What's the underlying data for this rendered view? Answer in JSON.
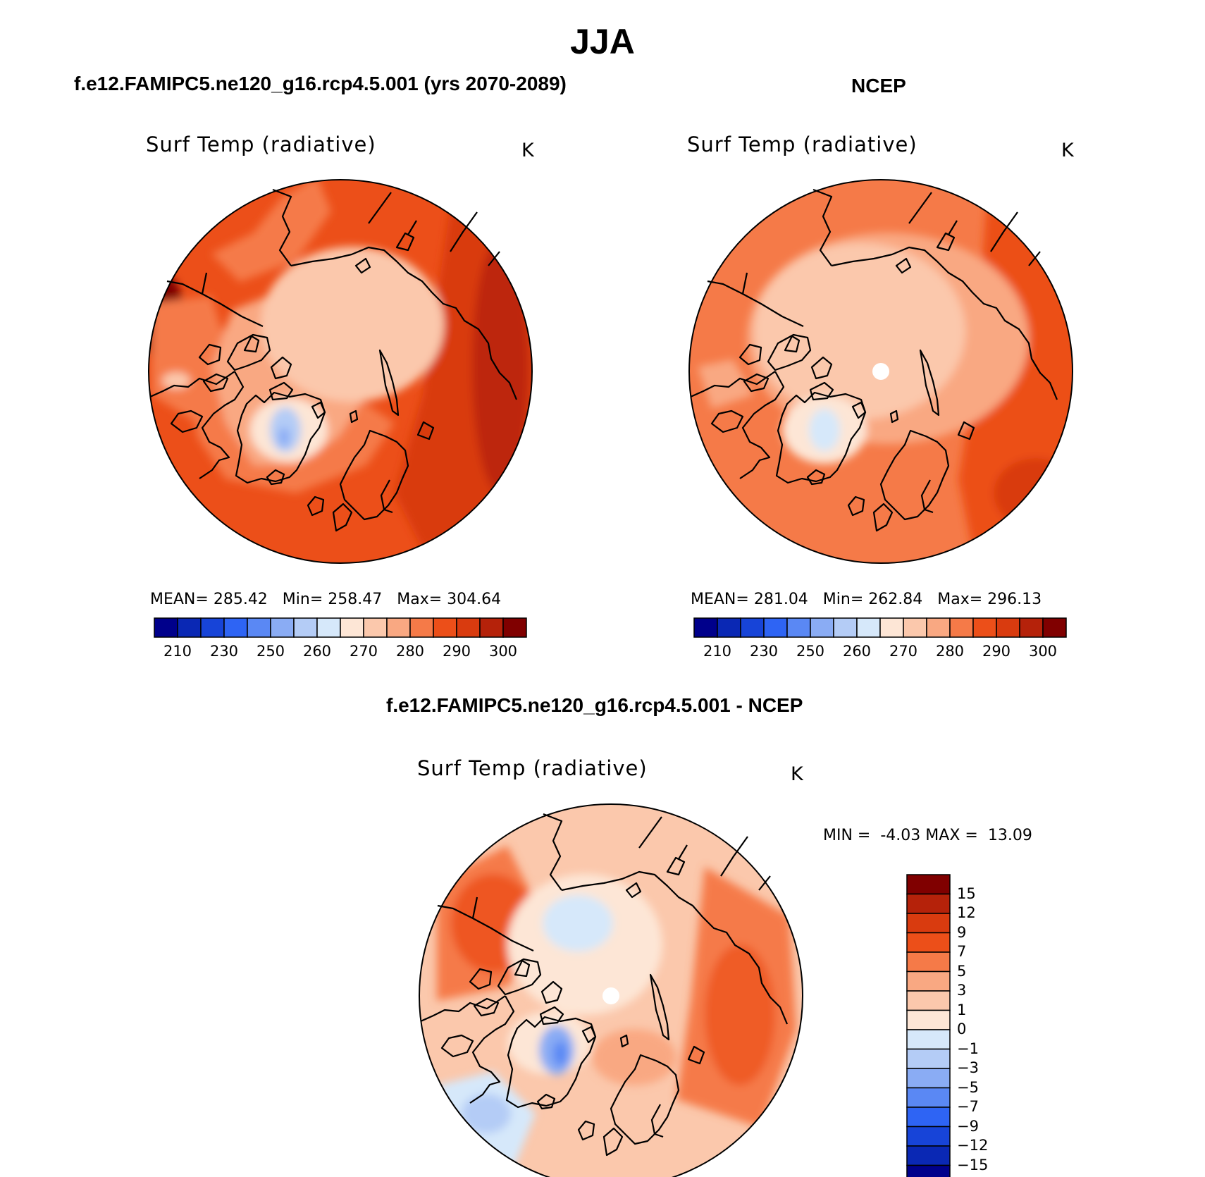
{
  "title": "JJA",
  "panels": [
    {
      "id": "model",
      "header": "f.e12.FAMIPC5.ne120_g16.rcp4.5.001 (yrs 2070-2089)",
      "variable": "Surf Temp (radiative)",
      "units": "K",
      "stats": {
        "mean_label": "MEAN=",
        "mean": "285.42",
        "min_label": "Min=",
        "min": "258.47",
        "max_label": "Max=",
        "max": "304.64"
      }
    },
    {
      "id": "obs",
      "header": "NCEP",
      "variable": "Surf Temp (radiative)",
      "units": "K",
      "stats": {
        "mean_label": "MEAN=",
        "mean": "281.04",
        "min_label": "Min=",
        "min": "262.84",
        "max_label": "Max=",
        "max": "296.13"
      }
    },
    {
      "id": "diff",
      "header": "f.e12.FAMIPC5.ne120_g16.rcp4.5.001 - NCEP",
      "variable": "Surf Temp (radiative)",
      "units": "K",
      "stats": {
        "min_label": "MIN =",
        "min": "-4.03",
        "max_label": "MAX =",
        "max": "13.09"
      }
    }
  ],
  "abs_colorbar": {
    "colors": [
      "#00008b",
      "#0a28b4",
      "#1744d8",
      "#2e64f4",
      "#5a88f4",
      "#8aacf4",
      "#b4ccf6",
      "#d6e8fa",
      "#fde6d6",
      "#fbc8ac",
      "#f9a882",
      "#f57a48",
      "#ec4f19",
      "#d93b0f",
      "#b5220a",
      "#800000"
    ],
    "labels": [
      "210",
      "230",
      "250",
      "260",
      "270",
      "280",
      "290",
      "300"
    ]
  },
  "diff_colorbar": {
    "colors": [
      "#800000",
      "#b5220a",
      "#d93b0f",
      "#ec4f19",
      "#f57a48",
      "#f9a882",
      "#fbc8ac",
      "#fde6d6",
      "#d6e8fa",
      "#b4ccf6",
      "#8aacf4",
      "#5a88f4",
      "#2e64f4",
      "#1744d8",
      "#0a28b4",
      "#00008b"
    ],
    "labels": [
      "15",
      "12",
      "9",
      "7",
      "5",
      "3",
      "1",
      "0",
      "−1",
      "−3",
      "−5",
      "−7",
      "−9",
      "−12",
      "−15"
    ]
  }
}
